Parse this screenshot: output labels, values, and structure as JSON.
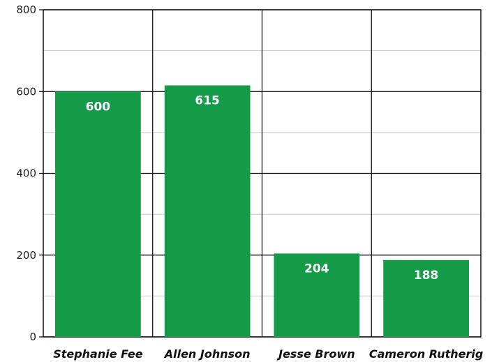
{
  "chart_data": {
    "type": "bar",
    "categories": [
      "Stephanie Fee",
      "Allen Johnson",
      "Jesse Brown",
      "Cameron Rutherig"
    ],
    "values": [
      600,
      615,
      204,
      188
    ],
    "data_labels": [
      "600",
      "615",
      "204",
      "188"
    ],
    "y_ticks": [
      "0",
      "200",
      "400",
      "600",
      "800"
    ],
    "ylim": [
      0,
      800
    ],
    "minor_grid_step": 100,
    "grid": true,
    "legend": "none",
    "bar_color": "#149b48",
    "major_grid_color": "#000000",
    "minor_grid_color": "#c8c8c8"
  }
}
